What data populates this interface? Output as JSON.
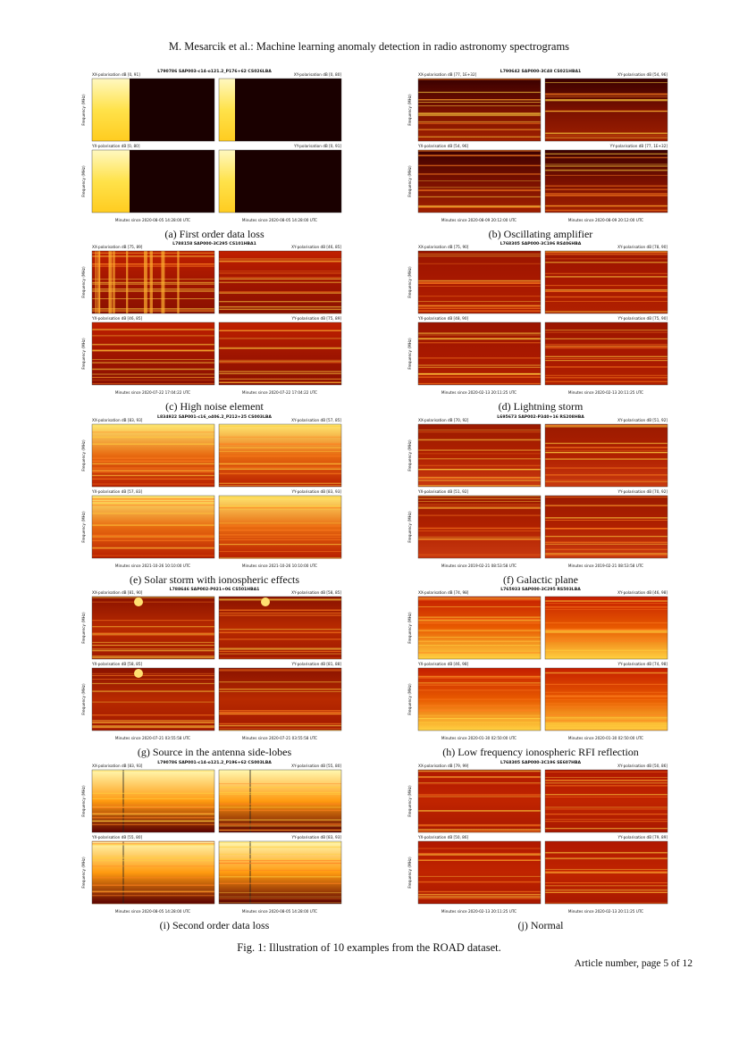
{
  "header": {
    "title": "M. Mesarcik et al.: Machine learning anomaly detection in radio astronomy spectrograms"
  },
  "panels": [
    {
      "title": "L790786 SAP003-c14-o121.2_P176+62 CS026LBA",
      "pol_labels": [
        "XX-polarisation dB [0, 91]",
        "XY-polarisation dB [0, 80]",
        "YX-polarisation dB [0, 80]",
        "YY-polarisation dB [0, 91]"
      ],
      "y_label": "Frequency (MHz)",
      "x_labels": [
        "Minutes since 2020-08-05 14:28:00 UTC",
        "Minutes since 2020-08-05 14:28:00 UTC"
      ],
      "caption": "(a) First order data loss"
    },
    {
      "title": "L790642 SAP000-3C48 CS021HBA1",
      "pol_labels": [
        "XX-polarisation dB [77, 1E+32]",
        "XY-polarisation dB [54, 96]",
        "YX-polarisation dB [54, 96]",
        "YY-polarisation dB [77, 1E+32]"
      ],
      "y_label": "Frequency (MHz)",
      "x_labels": [
        "Minutes since 2020-08-09 20:12:00 UTC",
        "Minutes since 2020-08-09 20:12:00 UTC"
      ],
      "caption": "(b) Oscillating amplifier"
    },
    {
      "title": "L788158 SAP000-3C295 CS101HBA1",
      "pol_labels": [
        "XX-polarisation dB [75, 89]",
        "XY-polarisation dB [46, 85]",
        "YX-polarisation dB [46, 85]",
        "YY-polarisation dB [75, 89]"
      ],
      "y_label": "Frequency (MHz)",
      "x_labels": [
        "Minutes since 2020-07-22 17:04:22 UTC",
        "Minutes since 2020-07-22 17:04:22 UTC"
      ],
      "caption": "(c) High noise element"
    },
    {
      "title": "L768305 SAP000-3C196 RS406HBA",
      "pol_labels": [
        "XX-polarisation dB [75, 90]",
        "XY-polarisation dB [78, 90]",
        "YX-polarisation dB [48, 90]",
        "YY-polarisation dB [75, 90]"
      ],
      "y_label": "Frequency (MHz)",
      "x_labels": [
        "Minutes since 2020-02-13 20:11:25 UTC",
        "Minutes since 2020-02-13 20:11:25 UTC"
      ],
      "caption": "(d) Lightning storm"
    },
    {
      "title": "L834922 SAP001-c16_o406.2_P212+25 CS003LBA",
      "pol_labels": [
        "XX-polarisation dB [83, 93]",
        "XY-polarisation dB [57, 85]",
        "YX-polarisation dB [57, 83]",
        "YY-polarisation dB [83, 93]"
      ],
      "y_label": "Frequency (MHz)",
      "x_labels": [
        "Minutes since 2021-10-26 10:10:00 UTC",
        "Minutes since 2021-10-26 10:10:00 UTC"
      ],
      "caption": "(e) Solar storm with ionospheric effects"
    },
    {
      "title": "L695673 SAP002-P340+16 RS208HBA",
      "pol_labels": [
        "XX-polarisation dB [70, 92]",
        "XY-polarisation dB [51, 92]",
        "YX-polarisation dB [51, 92]",
        "YY-polarisation dB [70, 92]"
      ],
      "y_label": "Frequency (MHz)",
      "x_labels": [
        "Minutes since 2019-02-21 08:53:58 UTC",
        "Minutes since 2019-02-21 08:53:58 UTC"
      ],
      "caption": "(f) Galactic plane"
    },
    {
      "title": "L788646 SAP002-P021+06 CS501HBA1",
      "pol_labels": [
        "XX-polarisation dB [81, 90]",
        "XY-polarisation dB [58, 85]",
        "YX-polarisation dB [58, 85]",
        "YY-polarisation dB [81, 88]"
      ],
      "y_label": "Frequency (MHz)",
      "x_labels": [
        "Minutes since 2020-07-21 03:55:58 UTC",
        "Minutes since 2020-07-21 03:55:58 UTC"
      ],
      "caption": "(g) Source in the antenna side-lobes"
    },
    {
      "title": "L765933 SAP000-3C295 RS503LBA",
      "pol_labels": [
        "XX-polarisation dB [74, 98]",
        "XY-polarisation dB [46, 98]",
        "YX-polarisation dB [46, 98]",
        "YY-polarisation dB [74, 98]"
      ],
      "y_label": "Frequency (MHz)",
      "x_labels": [
        "Minutes since 2020-01-30 02:50:00 UTC",
        "Minutes since 2020-01-30 02:50:00 UTC"
      ],
      "caption": "(h) Low frequency ionospheric RFI reflection"
    },
    {
      "title": "L790786 SAP001-c14-o121.2_P196+62 CS003LBA",
      "pol_labels": [
        "XX-polarisation dB [83, 93]",
        "XY-polarisation dB [55, 80]",
        "YX-polarisation dB [55, 80]",
        "YY-polarisation dB [83, 93]"
      ],
      "y_label": "Frequency (MHz)",
      "x_labels": [
        "Minutes since 2020-08-05 14:28:00 UTC",
        "Minutes since 2020-08-05 14:28:00 UTC"
      ],
      "caption": "(i) Second order data loss"
    },
    {
      "title": "L768305 SAP000-3C196 SE607HBA",
      "pol_labels": [
        "XX-polarisation dB [79, 99]",
        "XY-polarisation dB [50, 86]",
        "YX-polarisation dB [50, 86]",
        "YY-polarisation dB [79, 89]"
      ],
      "y_label": "Frequency (MHz)",
      "x_labels": [
        "Minutes since 2020-02-13 20:11:25 UTC",
        "Minutes since 2020-02-13 20:11:25 UTC"
      ],
      "caption": "(j) Normal"
    }
  ],
  "figure_caption": "Fig. 1: Illustration of 10 examples from the ROAD dataset.",
  "footer": "Article number, page 5 of 12"
}
